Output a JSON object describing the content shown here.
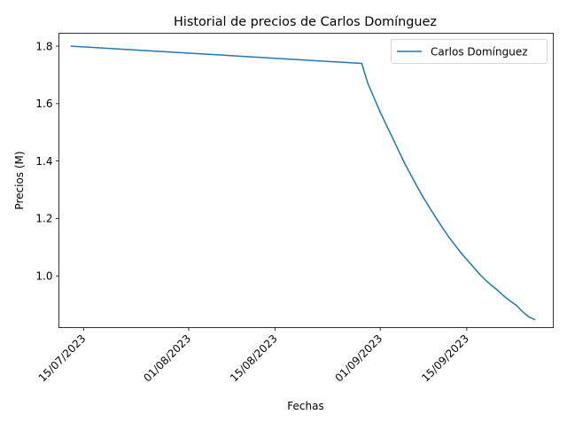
{
  "chart_data": {
    "type": "line",
    "title": "Historial de precios de Carlos Domínguez",
    "xlabel": "Fechas",
    "ylabel": "Precios (M)",
    "x_ticks": [
      {
        "date": "2023-07-15",
        "label": "15/07/2023"
      },
      {
        "date": "2023-08-01",
        "label": "01/08/2023"
      },
      {
        "date": "2023-08-15",
        "label": "15/08/2023"
      },
      {
        "date": "2023-09-01",
        "label": "01/09/2023"
      },
      {
        "date": "2023-09-15",
        "label": "15/09/2023"
      }
    ],
    "y_ticks": [
      {
        "value": 1.0,
        "label": "1.0"
      },
      {
        "value": 1.2,
        "label": "1.2"
      },
      {
        "value": 1.4,
        "label": "1.4"
      },
      {
        "value": 1.6,
        "label": "1.6"
      },
      {
        "value": 1.8,
        "label": "1.8"
      }
    ],
    "xlim": [
      "2023-07-11",
      "2023-09-29"
    ],
    "ylim": [
      0.82,
      1.845
    ],
    "grid": false,
    "legend": "top-right",
    "series": [
      {
        "name": "Carlos Domínguez",
        "color": "#1f77b4",
        "points": [
          {
            "x": "2023-07-13",
            "y": 1.8
          },
          {
            "x": "2023-08-29",
            "y": 1.74
          },
          {
            "x": "2023-08-30",
            "y": 1.67
          },
          {
            "x": "2023-08-31",
            "y": 1.62
          },
          {
            "x": "2023-09-01",
            "y": 1.57
          },
          {
            "x": "2023-09-02",
            "y": 1.525
          },
          {
            "x": "2023-09-03",
            "y": 1.48
          },
          {
            "x": "2023-09-04",
            "y": 1.435
          },
          {
            "x": "2023-09-05",
            "y": 1.39
          },
          {
            "x": "2023-09-06",
            "y": 1.35
          },
          {
            "x": "2023-09-07",
            "y": 1.31
          },
          {
            "x": "2023-09-08",
            "y": 1.272
          },
          {
            "x": "2023-09-09",
            "y": 1.237
          },
          {
            "x": "2023-09-10",
            "y": 1.203
          },
          {
            "x": "2023-09-11",
            "y": 1.17
          },
          {
            "x": "2023-09-12",
            "y": 1.138
          },
          {
            "x": "2023-09-13",
            "y": 1.11
          },
          {
            "x": "2023-09-14",
            "y": 1.082
          },
          {
            "x": "2023-09-15",
            "y": 1.057
          },
          {
            "x": "2023-09-16",
            "y": 1.033
          },
          {
            "x": "2023-09-17",
            "y": 1.008
          },
          {
            "x": "2023-09-18",
            "y": 0.986
          },
          {
            "x": "2023-09-19",
            "y": 0.967
          },
          {
            "x": "2023-09-20",
            "y": 0.95
          },
          {
            "x": "2023-09-21",
            "y": 0.93
          },
          {
            "x": "2023-09-22",
            "y": 0.913
          },
          {
            "x": "2023-09-23",
            "y": 0.898
          },
          {
            "x": "2023-09-24",
            "y": 0.876
          },
          {
            "x": "2023-09-25",
            "y": 0.858
          },
          {
            "x": "2023-09-26",
            "y": 0.848
          }
        ]
      }
    ]
  }
}
